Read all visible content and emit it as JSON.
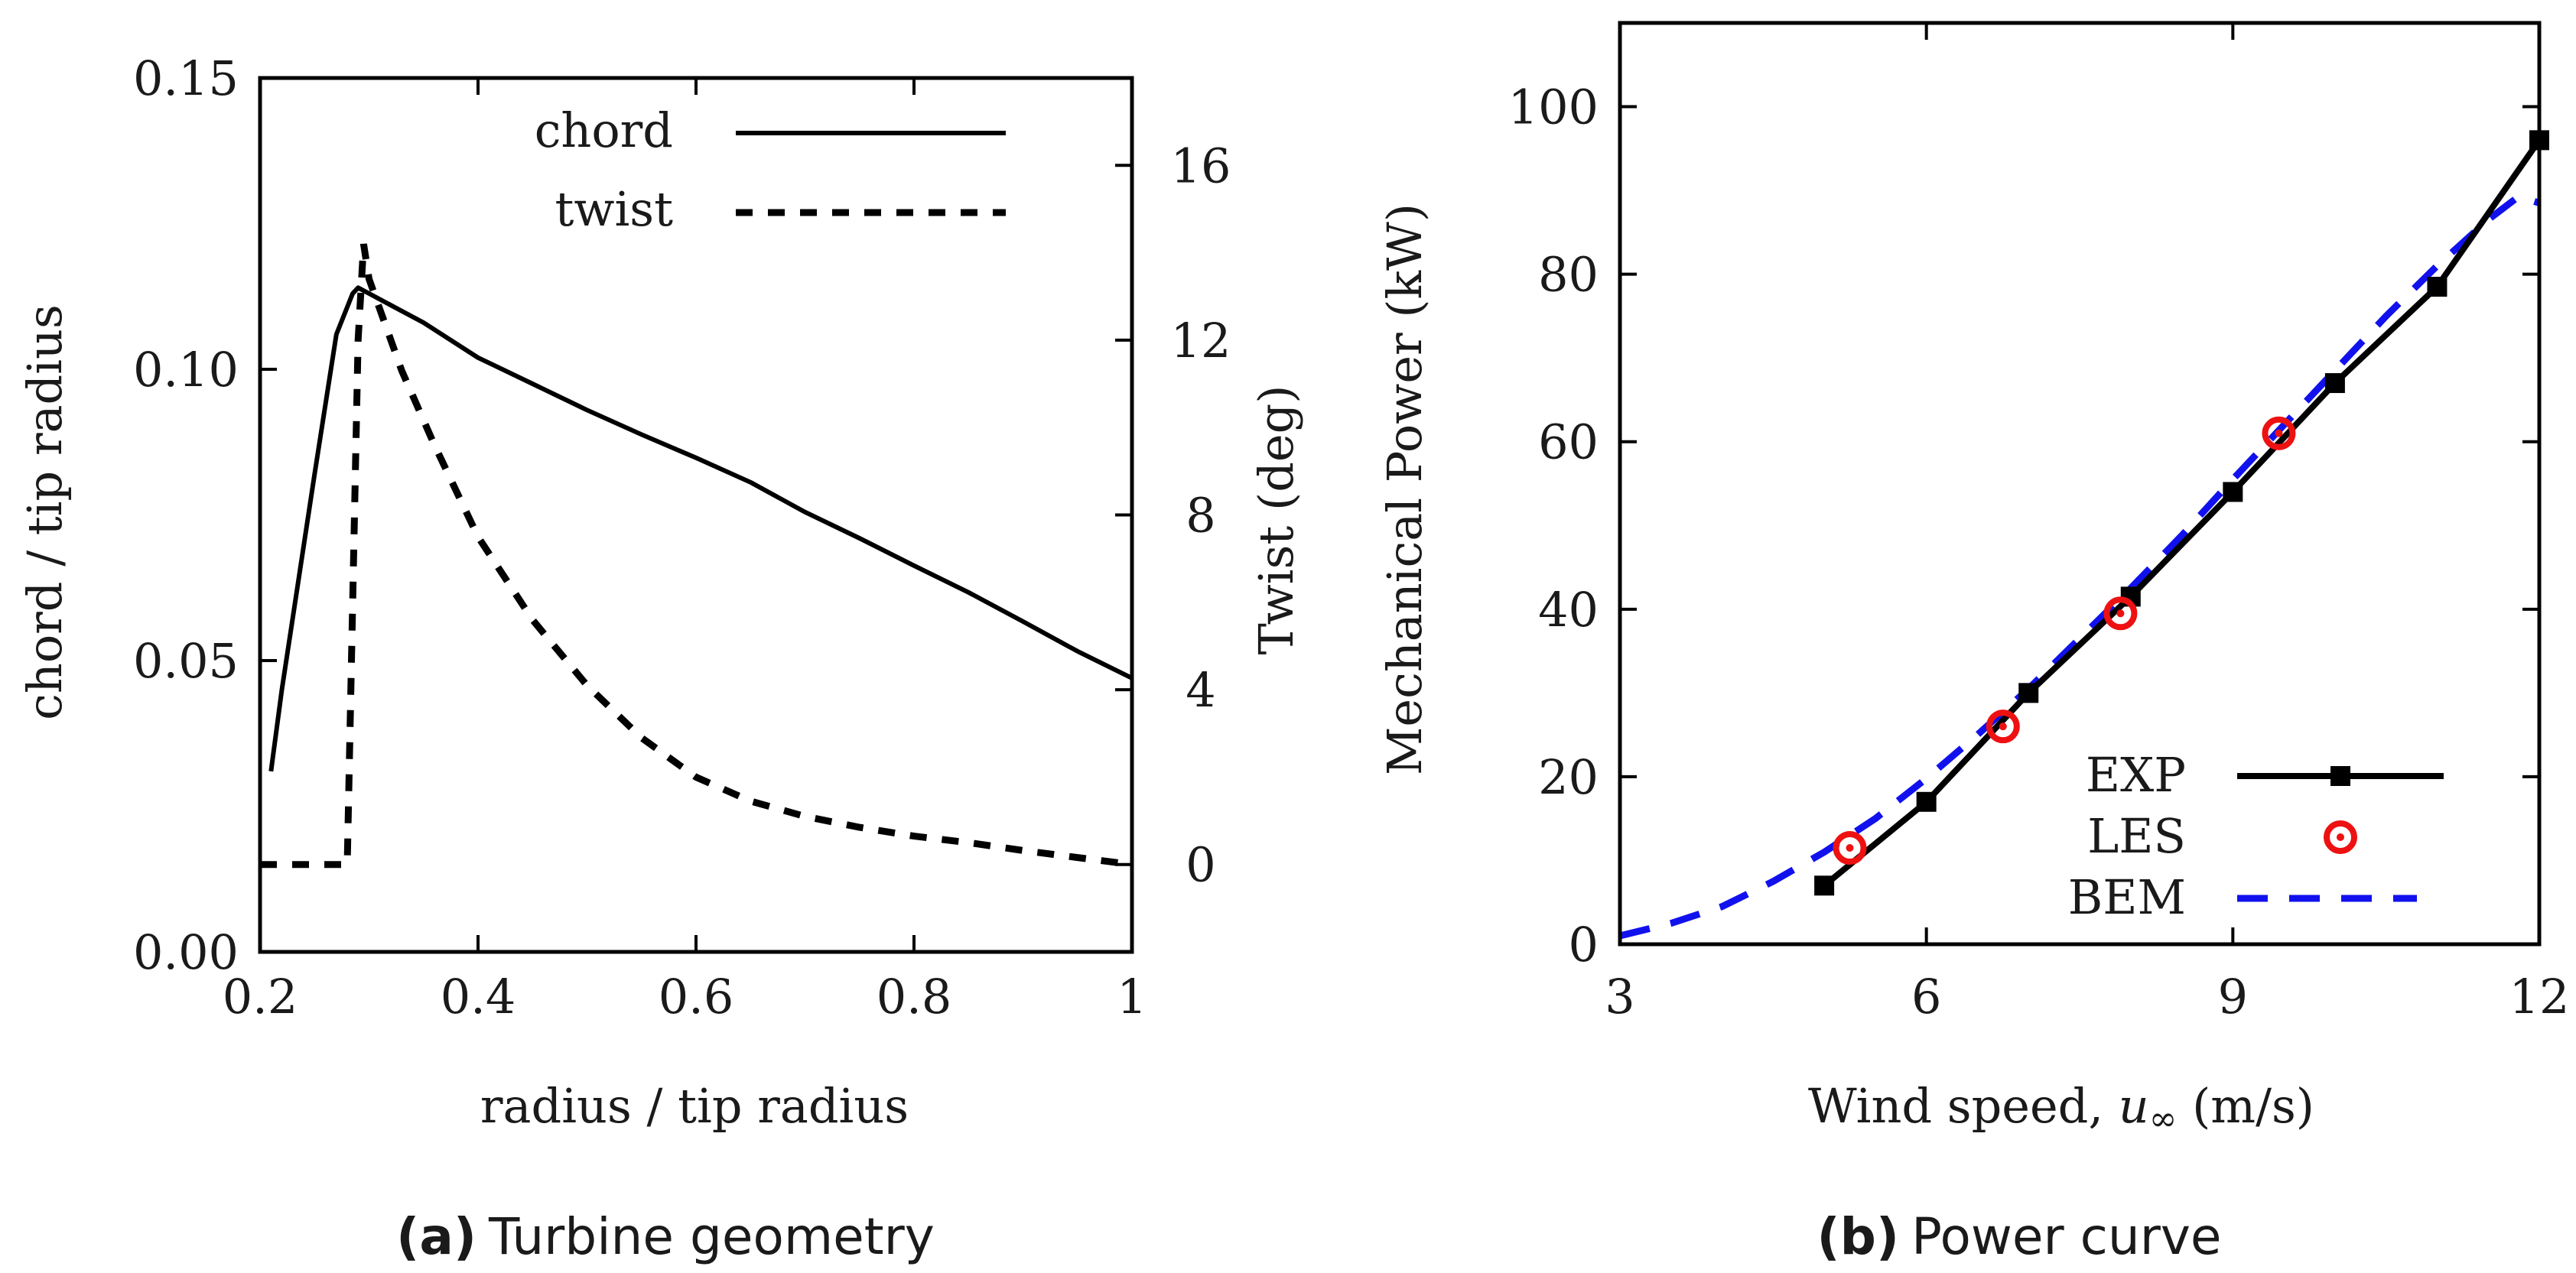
{
  "captions": {
    "a_tag": "(a)",
    "a_text": "Turbine geometry",
    "b_tag": "(b)",
    "b_text": "Power curve"
  },
  "chart_data": [
    {
      "id": "turbine-geometry",
      "type": "line",
      "title": "",
      "xlabel": "radius / tip radius",
      "ylabel": "chord / tip radius",
      "y2label": "Twist (deg)",
      "xlim": [
        0.2,
        1.0
      ],
      "ylim": [
        0.0,
        0.15
      ],
      "y2lim": [
        -2,
        18
      ],
      "xticks": [
        0.2,
        0.4,
        0.6,
        0.8,
        1.0
      ],
      "xtick_labels": [
        "0.2",
        "0.4",
        "0.6",
        "0.8",
        "1"
      ],
      "yticks": [
        0.0,
        0.05,
        0.1,
        0.15
      ],
      "ytick_labels": [
        "0.00",
        "0.05",
        "0.10",
        "0.15"
      ],
      "y2ticks": [
        0,
        4,
        8,
        12,
        16
      ],
      "y2tick_labels": [
        "0",
        "4",
        "8",
        "12",
        "16"
      ],
      "legend_position": "top-right",
      "series": [
        {
          "name": "chord",
          "axis": "left",
          "style": "solid",
          "x": [
            0.21,
            0.22,
            0.25,
            0.27,
            0.285,
            0.29,
            0.3,
            0.32,
            0.35,
            0.4,
            0.45,
            0.5,
            0.55,
            0.6,
            0.65,
            0.7,
            0.75,
            0.8,
            0.85,
            0.9,
            0.95,
            1.0
          ],
          "y": [
            0.031,
            0.045,
            0.082,
            0.106,
            0.113,
            0.114,
            0.113,
            0.111,
            0.108,
            0.102,
            0.0975,
            0.093,
            0.0888,
            0.0848,
            0.0806,
            0.0755,
            0.071,
            0.0663,
            0.0617,
            0.0567,
            0.0516,
            0.047
          ]
        },
        {
          "name": "twist",
          "axis": "right",
          "style": "dashed",
          "x": [
            0.2,
            0.28,
            0.29,
            0.295,
            0.3,
            0.33,
            0.36,
            0.4,
            0.45,
            0.5,
            0.55,
            0.6,
            0.65,
            0.7,
            0.75,
            0.8,
            0.85,
            0.9,
            0.95,
            1.0
          ],
          "y": [
            0.0,
            0.0,
            12.0,
            14.2,
            13.4,
            11.3,
            9.6,
            7.5,
            5.6,
            4.1,
            2.9,
            2.0,
            1.45,
            1.1,
            0.85,
            0.65,
            0.5,
            0.32,
            0.16,
            0.0
          ]
        }
      ]
    },
    {
      "id": "power-curve",
      "type": "line",
      "title": "",
      "xlabel_prefix": "Wind speed, ",
      "xlabel_var": "u",
      "xlabel_sub": "∞",
      "xlabel_suffix": " (m/s)",
      "ylabel": "Mechanical Power (kW)",
      "xlim": [
        3,
        12
      ],
      "ylim": [
        0,
        110
      ],
      "xticks": [
        3,
        6,
        9,
        12
      ],
      "xtick_labels": [
        "3",
        "6",
        "9",
        "12"
      ],
      "yticks": [
        0,
        20,
        40,
        60,
        80,
        100
      ],
      "ytick_labels": [
        "0",
        "20",
        "40",
        "60",
        "80",
        "100"
      ],
      "legend_position": "bottom-right",
      "series": [
        {
          "name": "EXP",
          "style": "solid-square-markers",
          "color": "#000000",
          "x": [
            5,
            6,
            7,
            8,
            9,
            10,
            11,
            12
          ],
          "y": [
            7,
            17,
            30,
            41.5,
            54,
            67,
            78.5,
            96
          ]
        },
        {
          "name": "LES",
          "style": "circle-markers",
          "color": "#ee1111",
          "x": [
            5.25,
            6.75,
            7.9,
            9.45
          ],
          "y": [
            11.5,
            26,
            39.5,
            61
          ]
        },
        {
          "name": "BEM",
          "style": "dashed",
          "color": "#1111ee",
          "x": [
            3,
            3.5,
            4,
            4.5,
            5,
            5.5,
            6,
            6.5,
            7,
            7.5,
            8,
            8.5,
            9,
            9.5,
            10,
            10.5,
            11,
            11.5,
            11.8,
            12
          ],
          "y": [
            1,
            2.5,
            4.5,
            7.5,
            11,
            15,
            19.8,
            25,
            30.5,
            36.5,
            42.5,
            48.8,
            55.5,
            62,
            68.5,
            75,
            81,
            86.5,
            89.3,
            88.5
          ]
        }
      ]
    }
  ]
}
